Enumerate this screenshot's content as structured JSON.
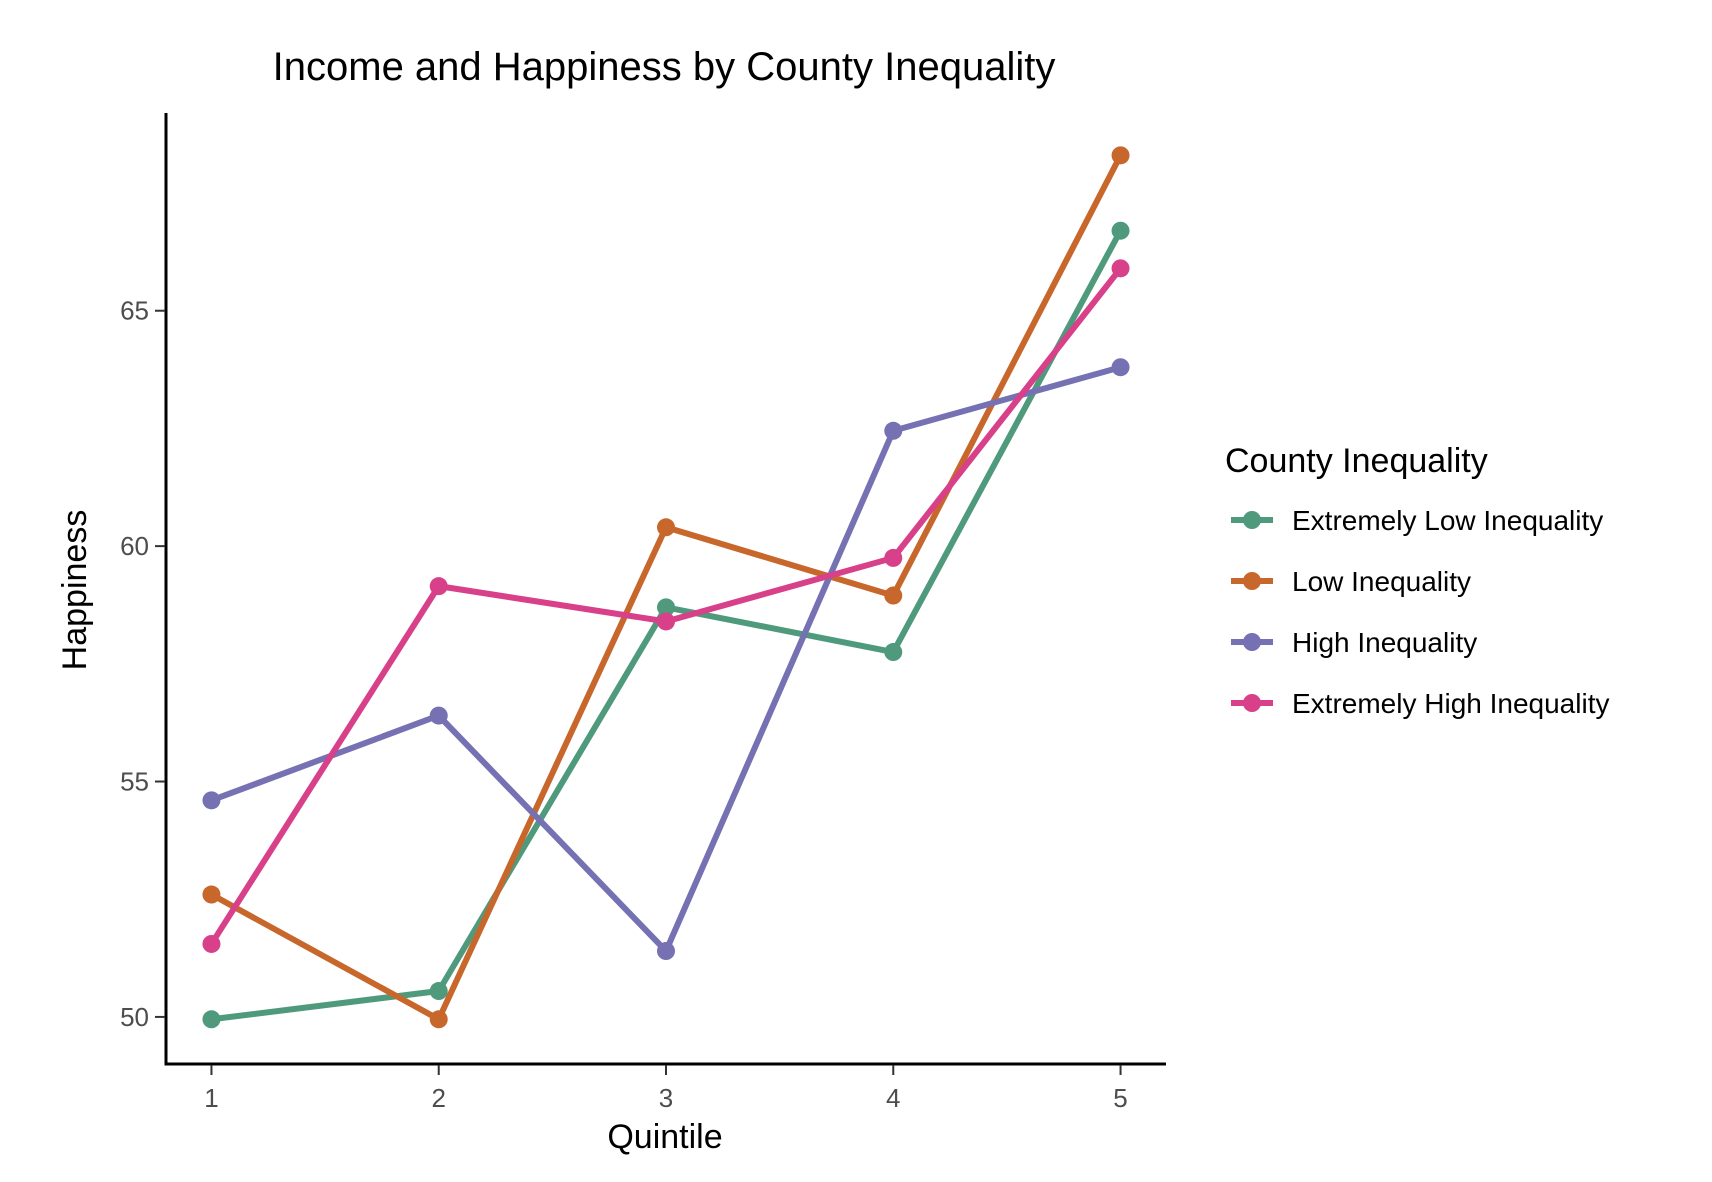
{
  "chart_data": {
    "type": "line",
    "title": "Income and Happiness by County Inequality",
    "xlabel": "Quintile",
    "ylabel": "Happiness",
    "x": [
      1,
      2,
      3,
      4,
      5
    ],
    "x_ticks": [
      "1",
      "2",
      "3",
      "4",
      "5"
    ],
    "y_ticks": [
      "50",
      "55",
      "60",
      "65"
    ],
    "xlim": [
      0.8,
      5.2
    ],
    "ylim": [
      49.0,
      69.2
    ],
    "grid": false,
    "legend": {
      "title": "County Inequality",
      "placement": "right"
    },
    "series": [
      {
        "name": "Extremely Low Inequality",
        "color": "#4f9a7c",
        "values": [
          49.95,
          50.55,
          58.7,
          57.75,
          66.7
        ]
      },
      {
        "name": "Low Inequality",
        "color": "#c8672c",
        "values": [
          52.6,
          49.95,
          60.4,
          58.95,
          68.3
        ]
      },
      {
        "name": "High Inequality",
        "color": "#7571b2",
        "values": [
          54.6,
          56.4,
          51.4,
          62.45,
          63.8
        ]
      },
      {
        "name": "Extremely High Inequality",
        "color": "#d8408a",
        "values": [
          51.55,
          59.15,
          58.4,
          59.75,
          65.9
        ]
      }
    ]
  }
}
